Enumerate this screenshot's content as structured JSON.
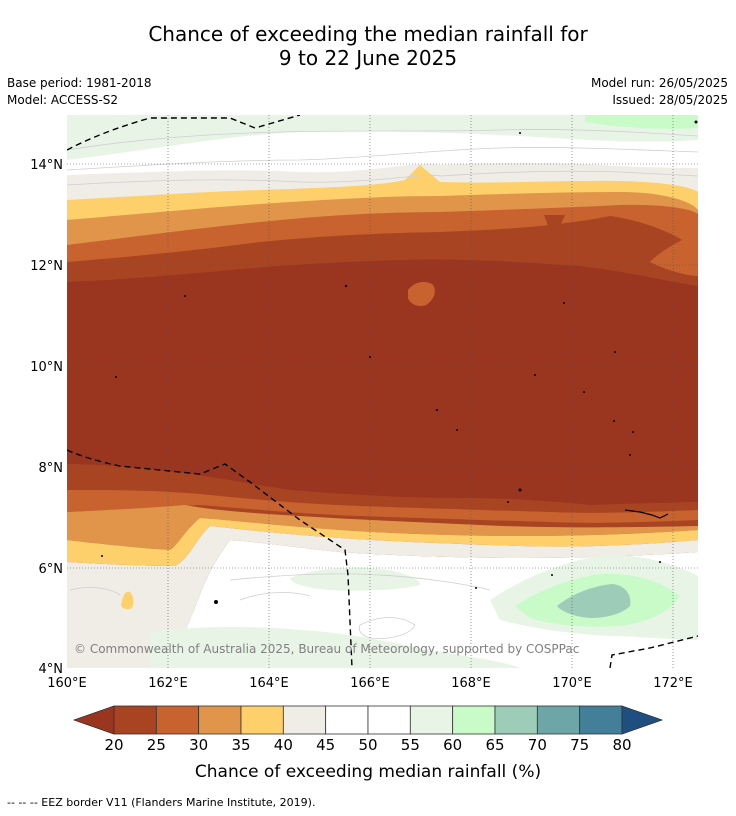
{
  "title": {
    "line1": "Chance of exceeding the median rainfall for",
    "line2": "9 to 22 June 2025"
  },
  "meta": {
    "base_period": "Base period: 1981-2018",
    "model": "Model: ACCESS-S2",
    "model_run": "Model run: 26/05/2025",
    "issued": "Issued: 28/05/2025"
  },
  "map": {
    "lon_labels": [
      "160°E",
      "162°E",
      "164°E",
      "166°E",
      "168°E",
      "170°E",
      "172°E"
    ],
    "lat_labels": [
      "14°N",
      "12°N",
      "10°N",
      "8°N",
      "6°N",
      "4°N"
    ],
    "extent": {
      "lon": [
        160,
        172.5
      ],
      "lat": [
        4,
        15
      ]
    },
    "copyright": "© Commonwealth of Australia 2025, Bureau of Meteorology, supported by COSPPac"
  },
  "colorbar": {
    "ticks": [
      "20",
      "25",
      "30",
      "35",
      "40",
      "45",
      "50",
      "55",
      "60",
      "65",
      "70",
      "75",
      "80"
    ],
    "colors": [
      "#a94422",
      "#c8622f",
      "#e0954a",
      "#fdd06b",
      "#f0ece6",
      "#ffffff",
      "#ffffff",
      "#e8f5e6",
      "#c9fbc9",
      "#9dcdb8",
      "#6ea5a6",
      "#437f99"
    ],
    "under_color": "#9a3520",
    "over_color": "#1f4f80",
    "label": "Chance of exceeding median rainfall (%)"
  },
  "footnote": "--  --  -- EEZ border V11 (Flanders Marine Institute, 2019)."
}
